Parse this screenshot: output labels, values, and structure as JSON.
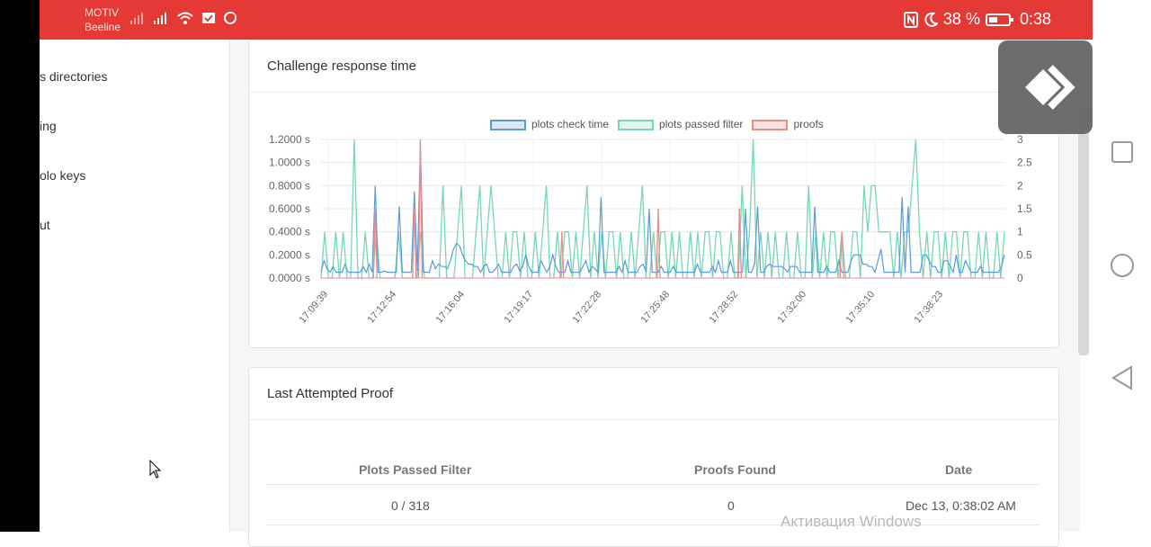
{
  "status_bar": {
    "carrier_line1": "MOTIV",
    "carrier_line2": "Beeline",
    "battery_percent": "38 %",
    "time": "0:38"
  },
  "sidebar": {
    "items": [
      {
        "label": "s directories"
      },
      {
        "label": "ing"
      },
      {
        "label": "olo keys"
      },
      {
        "label": "ut"
      }
    ]
  },
  "challenge_card": {
    "title": "Challenge response time",
    "legend": [
      "plots check time",
      "plots passed filter",
      "proofs"
    ]
  },
  "chart_data": {
    "type": "line",
    "x_tick_labels": [
      "17:09:39",
      "17:12:54",
      "17:16:04",
      "17:19:17",
      "17:22:28",
      "17:25:48",
      "17:28:52",
      "17:32:00",
      "17:35:10",
      "17:38:23"
    ],
    "y_left_ticks": [
      "1.2000 s",
      "1.0000 s",
      "0.8000 s",
      "0.6000 s",
      "0.4000 s",
      "0.2000 s",
      "0.0000 s"
    ],
    "y_right_ticks": [
      "3",
      "2.5",
      "2",
      "1.5",
      "1",
      "0.5",
      "0"
    ],
    "y_left_range": [
      0,
      1.2
    ],
    "y_right_range": [
      0,
      3
    ],
    "grid": true,
    "legend_position": "top",
    "series": [
      {
        "name": "plots check time",
        "axis": "left",
        "color": "#5b9bd5",
        "values": [
          0.05,
          0.15,
          0.08,
          0.05,
          0.1,
          0.05,
          0.05,
          0.05,
          0.12,
          0.05,
          0.05,
          0.05,
          0.05,
          0.05,
          0.1,
          0.05,
          0.12,
          0.05,
          0.8,
          0.05,
          0.05,
          0.06,
          0.05,
          0.05,
          0.05,
          0.05,
          0.62,
          0.05,
          0.05,
          0.05,
          0.05,
          0.75,
          0.06,
          1.15,
          0.05,
          0.05,
          0.05,
          0.15,
          0.08,
          0.12,
          0.1,
          0.1,
          0.08,
          0.15,
          0.25,
          0.3,
          0.28,
          0.2,
          0.15,
          0.12,
          0.12,
          0.1,
          0.1,
          0.05,
          0.1,
          0.12,
          0.05,
          0.05,
          0.08,
          0.12,
          0.05,
          0.05,
          0.05,
          0.05,
          0.1,
          0.12,
          0.06,
          0.1,
          0.2,
          0.1,
          0.05,
          0.05,
          0.05,
          0.15,
          0.1,
          0.05,
          0.1,
          0.2,
          0.1,
          0.05,
          0.05,
          0.05,
          0.15,
          0.05,
          0.05,
          0.05,
          0.05,
          0.1,
          0.15,
          0.05,
          0.1,
          0.08,
          0.05,
          0.7,
          0.05,
          0.05,
          0.05,
          0.05,
          0.05,
          0.1,
          0.05,
          0.15,
          0.05,
          0.05,
          0.05,
          0.05,
          0.1,
          0.12,
          0.05,
          0.6,
          0.05,
          0.05,
          0.05,
          0.1,
          0.05,
          0.05,
          0.05,
          0.1,
          0.05,
          0.05,
          0.05,
          0.05,
          0.05,
          0.05,
          0.05,
          0.12,
          0.05,
          0.05,
          0.05,
          0.05,
          0.1,
          0.05,
          0.15,
          0.05,
          0.05,
          0.05,
          0.15,
          0.05,
          0.05,
          0.05,
          0.05,
          0.6,
          0.05,
          0.05,
          0.12,
          0.62,
          0.05,
          0.05,
          0.1,
          0.12,
          0.1,
          0.1,
          0.1,
          0.1,
          0.08,
          0.05,
          0.1,
          0.1,
          0.1,
          0.05,
          0.05,
          0.05,
          0.05,
          0.05,
          0.62,
          0.05,
          0.05,
          0.05,
          0.1,
          0.05,
          0.05,
          0.05,
          0.15,
          0.05,
          0.05,
          0.05,
          0.15,
          0.2,
          0.2,
          0.2,
          0.12,
          0.12,
          0.1,
          0.1,
          0.05,
          0.15,
          0.25,
          0.05,
          0.05,
          0.05,
          0.05,
          0.05,
          0.05,
          0.7,
          0.05,
          0.62,
          0.05,
          0.05,
          0.05,
          0.05,
          0.2,
          0.2,
          0.15,
          0.1,
          0.1,
          0.05,
          0.05,
          0.15,
          0.15,
          0.1,
          0.05,
          0.2,
          0.05,
          0.05,
          0.15,
          0.1,
          0.05,
          0.05,
          0.05,
          0.1,
          0.05,
          0.05,
          0.05,
          0.05,
          0.05,
          0.05,
          0.1,
          0.2
        ]
      },
      {
        "name": "plots passed filter",
        "axis": "right",
        "color": "#76d7b6",
        "values": [
          0,
          1,
          0,
          0,
          1,
          0,
          1,
          0,
          0,
          3,
          0,
          0,
          1,
          0,
          0,
          1,
          0,
          0,
          0,
          0,
          0,
          1,
          0,
          0,
          0,
          0,
          0,
          1,
          0,
          0,
          0,
          0,
          0,
          2,
          0,
          0,
          0,
          1,
          2,
          0,
          0,
          0,
          1,
          2,
          0,
          1,
          2,
          1,
          0,
          0,
          1,
          0,
          1,
          1,
          0,
          1,
          0,
          0,
          1,
          0,
          1,
          2,
          0,
          0,
          1,
          0,
          1,
          1,
          0,
          1,
          0,
          1,
          2,
          0,
          1,
          0,
          1,
          0,
          1,
          1,
          0,
          1,
          0,
          0,
          1,
          0,
          1,
          2,
          0,
          0,
          1,
          0,
          1,
          1,
          0,
          1,
          0,
          1,
          0,
          0,
          1,
          0,
          1,
          0,
          1,
          1,
          0,
          1,
          1,
          0,
          0,
          1,
          0,
          0,
          2,
          0,
          1,
          3,
          0,
          1,
          0,
          1,
          0,
          1,
          0,
          0,
          1,
          0,
          0,
          1,
          0,
          0,
          2,
          0,
          1,
          0,
          1,
          0,
          1,
          1,
          0,
          1,
          0,
          0,
          1,
          1,
          0,
          2,
          1,
          2,
          2,
          1,
          1,
          1,
          1,
          0,
          1,
          0,
          1,
          1,
          2,
          3,
          1,
          0,
          1,
          0,
          1,
          1,
          0,
          1,
          0,
          1,
          1,
          0,
          1,
          1,
          0,
          0,
          1,
          0,
          1,
          0,
          0,
          1,
          0,
          1
        ]
      },
      {
        "name": "proofs",
        "axis": "right",
        "color": "#e88c8c",
        "spikes": [
          {
            "index": 18,
            "value": 1.5
          },
          {
            "index": 31,
            "value": 1.5
          },
          {
            "index": 33,
            "value": 3
          },
          {
            "index": 80,
            "value": 1
          },
          {
            "index": 112,
            "value": 1.5
          },
          {
            "index": 139,
            "value": 1.5
          },
          {
            "index": 173,
            "value": 1
          }
        ]
      }
    ]
  },
  "proof_card": {
    "title": "Last Attempted Proof",
    "columns": [
      "Plots Passed Filter",
      "Proofs Found",
      "Date"
    ],
    "rows": [
      {
        "passed": "0 / 318",
        "proofs": "0",
        "date": "Dec 13, 0:38:02 AM"
      }
    ]
  },
  "watermark": "Активация Windows",
  "colors": {
    "status_bar": "#e53935",
    "accent_blue": "#5b9bd5",
    "accent_green": "#76d7b6",
    "accent_red": "#e88c8c"
  }
}
